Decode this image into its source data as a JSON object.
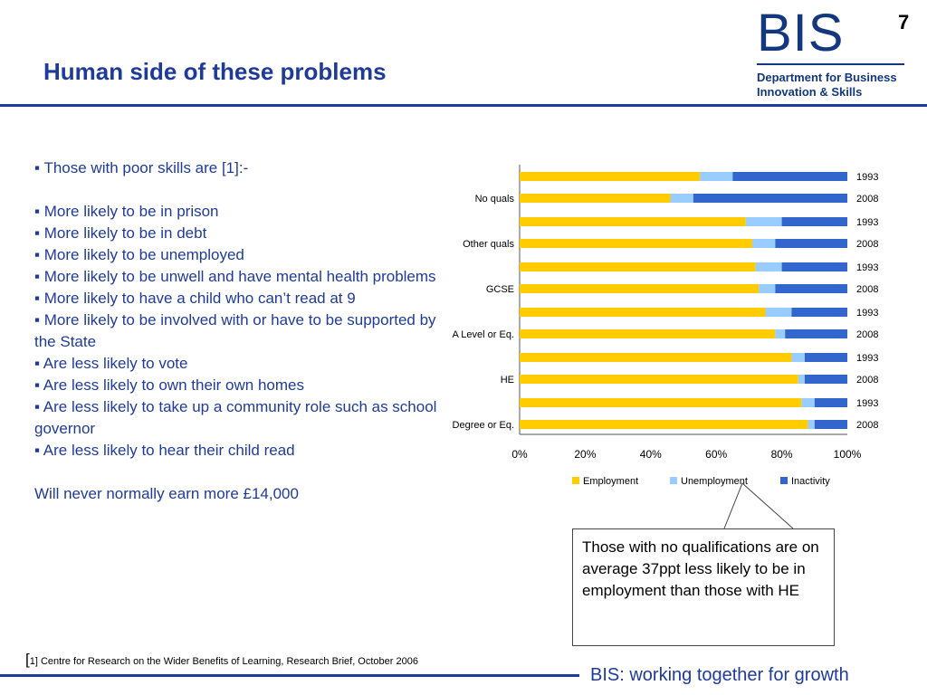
{
  "slide": {
    "page_number": "7",
    "title": "Human side of these problems",
    "logo": {
      "mark": "BIS",
      "subtitle_line1": "Department for Business",
      "subtitle_line2": "Innovation & Skills"
    },
    "bullets": {
      "intro": "▪ Those with poor skills are [1]:-",
      "items": [
        "▪ More likely to be in prison",
        "▪ More likely to be in debt",
        "▪ More likely to be unemployed",
        "▪ More likely to be unwell and have mental health problems",
        "▪ More likely to have a child who can’t read at 9",
        "▪ More likely to be involved with or have to be supported by the State",
        "▪ Are less likely to vote",
        "▪ Are less likely to own their own homes",
        "▪ Are less likely to take up a community role such as school governor",
        "▪ Are less likely to hear their child read"
      ],
      "closing": "Will never normally earn more £14,000"
    },
    "callout": "Those with no qualifications are on average 37ppt less likely to be in employment than those with HE",
    "footnote_bracket": "[",
    "footnote": "1] Centre for Research on the Wider Benefits of Learning, Research Brief, October 2006",
    "tagline": "BIS: working together for growth"
  },
  "chart_data": {
    "type": "bar",
    "orientation": "horizontal",
    "stacked": true,
    "percent_stacked": true,
    "categories": [
      "No quals",
      "Other quals",
      "GCSE",
      "A Level or Eq.",
      "HE",
      "Degree or Eq."
    ],
    "bar_labels": [
      "1993",
      "2008"
    ],
    "series": [
      {
        "name": "Employment",
        "color": "#ffcc00",
        "values_1993": [
          55,
          69,
          72,
          75,
          83,
          86
        ],
        "values_2008": [
          46,
          71,
          73,
          78,
          85,
          88
        ]
      },
      {
        "name": "Unemployment",
        "color": "#99ccff",
        "values_1993": [
          10,
          11,
          8,
          8,
          4,
          4
        ],
        "values_2008": [
          7,
          7,
          5,
          3,
          2,
          2
        ]
      },
      {
        "name": "Inactivity",
        "color": "#3366cc",
        "values_1993": [
          35,
          20,
          20,
          17,
          13,
          10
        ],
        "values_2008": [
          47,
          22,
          22,
          19,
          13,
          10
        ]
      }
    ],
    "xticks": [
      "0%",
      "20%",
      "40%",
      "60%",
      "80%",
      "100%"
    ],
    "xlim": [
      0,
      100
    ],
    "legend_position": "bottom",
    "grid": false
  }
}
